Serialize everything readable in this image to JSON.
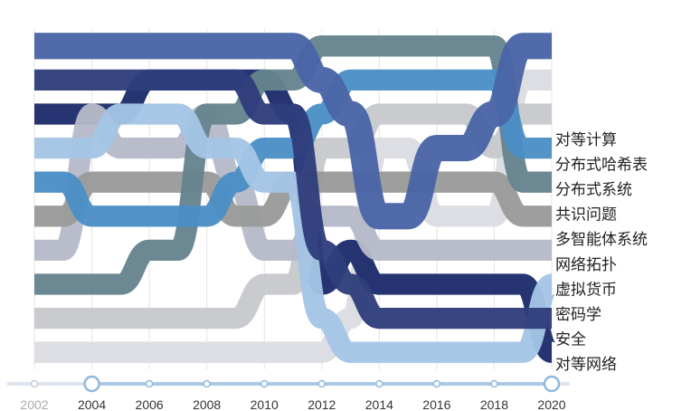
{
  "chart_data": {
    "type": "area",
    "subtype": "bump-stream",
    "x": [
      2002,
      2003,
      2004,
      2005,
      2006,
      2007,
      2008,
      2009,
      2010,
      2011,
      2012,
      2013,
      2014,
      2015,
      2016,
      2017,
      2018,
      2019,
      2020
    ],
    "x_tick_labels": [
      "2002",
      "2004",
      "2006",
      "2008",
      "2010",
      "2012",
      "2014",
      "2016",
      "2018",
      "2020"
    ],
    "timeline_start": "2004",
    "timeline_end": "2020",
    "grid": true,
    "legend": "none",
    "series": [
      {
        "name": "对等计算",
        "color": "#4a65a7",
        "rank": [
          1,
          1,
          1,
          1,
          1,
          1,
          1,
          1,
          1,
          1,
          2,
          3,
          6,
          6,
          4,
          4,
          3,
          1,
          1
        ]
      },
      {
        "name": "安全",
        "color": "#2f3d7c",
        "rank": [
          2,
          2,
          2,
          2,
          2,
          2,
          2,
          2,
          3,
          3,
          7,
          8,
          9,
          9,
          9,
          9,
          9,
          9,
          9
        ]
      },
      {
        "name": "密码学",
        "color": "#a4c5e5",
        "rank": [
          4,
          4,
          4,
          3,
          3,
          3,
          4,
          4,
          5,
          5,
          9,
          10,
          10,
          10,
          10,
          10,
          10,
          10,
          8
        ]
      },
      {
        "name": "共识问题",
        "color": "#4b8fc6",
        "rank": [
          5,
          5,
          6,
          6,
          6,
          6,
          6,
          5,
          4,
          4,
          3,
          2,
          2,
          2,
          2,
          2,
          2,
          4,
          4
        ]
      },
      {
        "name": "多智能体系统",
        "color": "#66838f",
        "rank": [
          8,
          8,
          8,
          8,
          7,
          7,
          3,
          3,
          2,
          2,
          1,
          1,
          1,
          1,
          1,
          1,
          1,
          5,
          5
        ]
      },
      {
        "name": "网络拓扑",
        "color": "#9a9a9a",
        "rank": [
          6,
          6,
          5,
          5,
          5,
          5,
          5,
          6,
          6,
          5,
          5,
          5,
          5,
          5,
          5,
          5,
          5,
          6,
          6
        ]
      },
      {
        "name": "虚拟货币",
        "color": "#b6b9c8",
        "rank": [
          7,
          7,
          3,
          4,
          4,
          4,
          3,
          5,
          7,
          7,
          6,
          6,
          7,
          7,
          7,
          7,
          7,
          7,
          7
        ]
      },
      {
        "name": "分布式系统",
        "color": "#c7c9cc",
        "rank": [
          9,
          9,
          9,
          9,
          9,
          9,
          9,
          9,
          8,
          8,
          4,
          4,
          3,
          3,
          3,
          3,
          4,
          3,
          3
        ]
      },
      {
        "name": "对等网络",
        "color": "#1d2d6b",
        "rank": [
          3,
          3,
          3,
          3,
          2,
          2,
          2,
          2,
          2,
          3,
          8,
          7,
          8,
          8,
          8,
          8,
          8,
          8,
          10
        ]
      },
      {
        "name": "分布式哈希表",
        "color": "#dcdde2",
        "rank": [
          10,
          10,
          10,
          10,
          10,
          10,
          10,
          10,
          10,
          10,
          10,
          9,
          4,
          4,
          6,
          6,
          6,
          2,
          2
        ]
      }
    ]
  }
}
